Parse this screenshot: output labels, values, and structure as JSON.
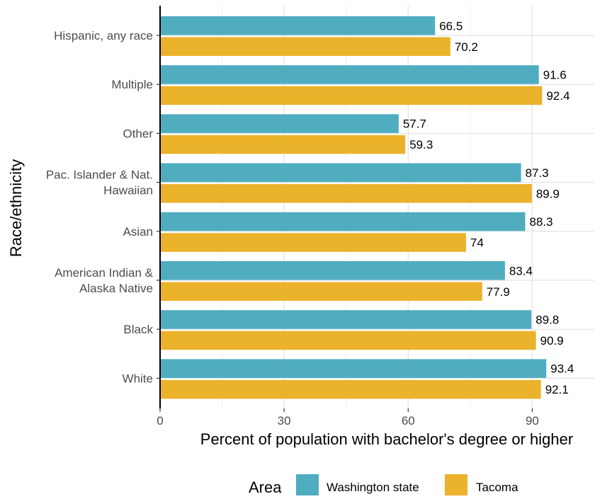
{
  "chart_data": {
    "type": "bar",
    "orientation": "horizontal",
    "categories": [
      "Hispanic, any race",
      "Multiple",
      "Other",
      "Pac. Islander & Nat. Hawaiian",
      "Asian",
      "American Indian & Alaska Native",
      "Black",
      "White"
    ],
    "category_lines": [
      [
        "Hispanic, any race"
      ],
      [
        "Multiple"
      ],
      [
        "Other"
      ],
      [
        "Pac. Islander & Nat.",
        "Hawaiian"
      ],
      [
        "Asian"
      ],
      [
        "American Indian &",
        "Alaska Native"
      ],
      [
        "Black"
      ],
      [
        "White"
      ]
    ],
    "series": [
      {
        "name": "Washington state",
        "color": "#4FADBF",
        "values": [
          66.5,
          91.6,
          57.7,
          87.3,
          88.3,
          83.4,
          89.8,
          93.4
        ],
        "labels": [
          "66.5",
          "91.6",
          "57.7",
          "87.3",
          "88.3",
          "83.4",
          "89.8",
          "93.4"
        ]
      },
      {
        "name": "Tacoma",
        "color": "#EBB22B",
        "values": [
          70.2,
          92.4,
          59.3,
          89.9,
          74,
          77.9,
          90.9,
          92.1
        ],
        "labels": [
          "70.2",
          "92.4",
          "59.3",
          "89.9",
          "74",
          "77.9",
          "90.9",
          "92.1"
        ]
      }
    ],
    "xlabel": "Percent of population with bachelor's degree or higher",
    "ylabel": "Race/ethnicity",
    "xlim": [
      0,
      105
    ],
    "xticks": [
      0,
      30,
      60,
      90
    ],
    "grid": true,
    "legend": {
      "title": "Area",
      "position": "bottom"
    }
  }
}
